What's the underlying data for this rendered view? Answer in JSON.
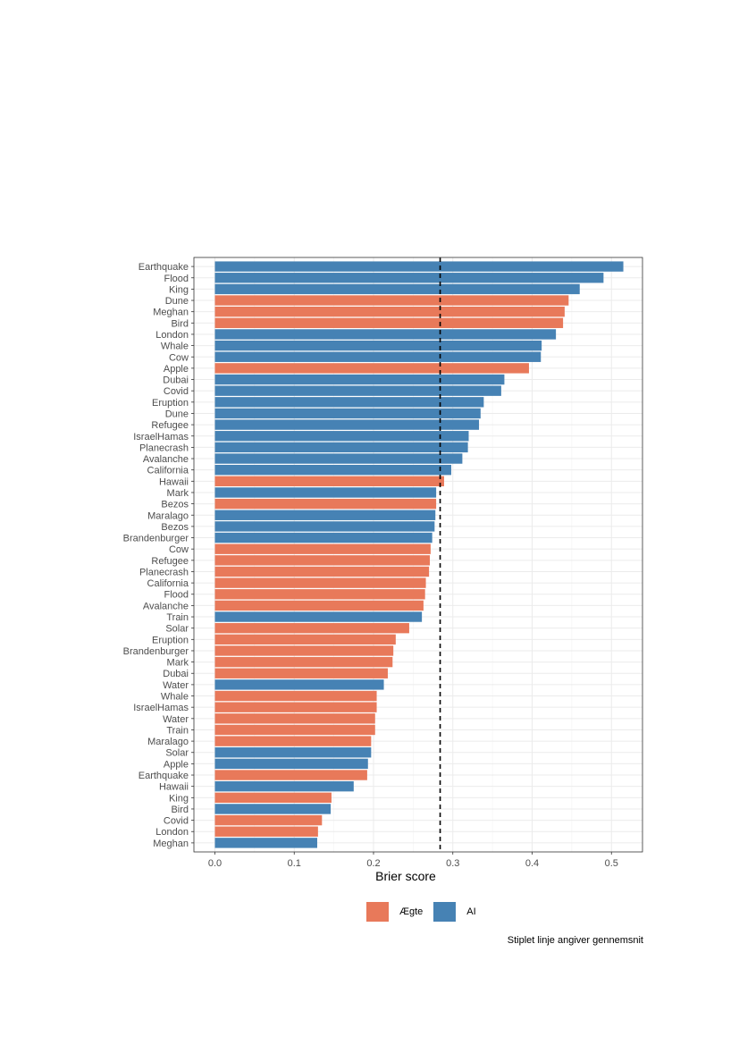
{
  "chart_data": {
    "type": "bar",
    "orientation": "horizontal",
    "xlabel": "Brier score",
    "ylabel": "",
    "xlim": [
      0,
      0.54
    ],
    "xticks": [
      0.0,
      0.1,
      0.2,
      0.3,
      0.4,
      0.5
    ],
    "xtick_labels": [
      "0.0",
      "0.1",
      "0.2",
      "0.3",
      "0.4",
      "0.5"
    ],
    "grid": true,
    "mean_line": 0.284,
    "legend_position": "bottom",
    "series": [
      {
        "name": "Ægte",
        "color": "#E8795A"
      },
      {
        "name": "AI",
        "color": "#4682B4"
      }
    ],
    "bars": [
      {
        "label": "Earthquake",
        "value": 0.515,
        "series": "AI"
      },
      {
        "label": "Flood",
        "value": 0.49,
        "series": "AI"
      },
      {
        "label": "King",
        "value": 0.46,
        "series": "AI"
      },
      {
        "label": "Dune",
        "value": 0.446,
        "series": "Ægte"
      },
      {
        "label": "Meghan",
        "value": 0.441,
        "series": "Ægte"
      },
      {
        "label": "Bird",
        "value": 0.439,
        "series": "Ægte"
      },
      {
        "label": "London",
        "value": 0.43,
        "series": "AI"
      },
      {
        "label": "Whale",
        "value": 0.412,
        "series": "AI"
      },
      {
        "label": "Cow",
        "value": 0.411,
        "series": "AI"
      },
      {
        "label": "Apple",
        "value": 0.396,
        "series": "Ægte"
      },
      {
        "label": "Dubai",
        "value": 0.365,
        "series": "AI"
      },
      {
        "label": "Covid",
        "value": 0.361,
        "series": "AI"
      },
      {
        "label": "Eruption",
        "value": 0.339,
        "series": "AI"
      },
      {
        "label": "Dune",
        "value": 0.335,
        "series": "AI"
      },
      {
        "label": "Refugee",
        "value": 0.333,
        "series": "AI"
      },
      {
        "label": "IsraelHamas",
        "value": 0.32,
        "series": "AI"
      },
      {
        "label": "Planecrash",
        "value": 0.319,
        "series": "AI"
      },
      {
        "label": "Avalanche",
        "value": 0.312,
        "series": "AI"
      },
      {
        "label": "California",
        "value": 0.298,
        "series": "AI"
      },
      {
        "label": "Hawaii",
        "value": 0.289,
        "series": "Ægte"
      },
      {
        "label": "Mark",
        "value": 0.279,
        "series": "AI"
      },
      {
        "label": "Bezos",
        "value": 0.279,
        "series": "Ægte"
      },
      {
        "label": "Maralago",
        "value": 0.278,
        "series": "AI"
      },
      {
        "label": "Bezos",
        "value": 0.277,
        "series": "AI"
      },
      {
        "label": "Brandenburger",
        "value": 0.274,
        "series": "AI"
      },
      {
        "label": "Cow",
        "value": 0.272,
        "series": "Ægte"
      },
      {
        "label": "Refugee",
        "value": 0.271,
        "series": "Ægte"
      },
      {
        "label": "Planecrash",
        "value": 0.27,
        "series": "Ægte"
      },
      {
        "label": "California",
        "value": 0.266,
        "series": "Ægte"
      },
      {
        "label": "Flood",
        "value": 0.265,
        "series": "Ægte"
      },
      {
        "label": "Avalanche",
        "value": 0.263,
        "series": "Ægte"
      },
      {
        "label": "Train",
        "value": 0.261,
        "series": "AI"
      },
      {
        "label": "Solar",
        "value": 0.245,
        "series": "Ægte"
      },
      {
        "label": "Eruption",
        "value": 0.228,
        "series": "Ægte"
      },
      {
        "label": "Brandenburger",
        "value": 0.225,
        "series": "Ægte"
      },
      {
        "label": "Mark",
        "value": 0.224,
        "series": "Ægte"
      },
      {
        "label": "Dubai",
        "value": 0.218,
        "series": "Ægte"
      },
      {
        "label": "Water",
        "value": 0.213,
        "series": "AI"
      },
      {
        "label": "Whale",
        "value": 0.204,
        "series": "Ægte"
      },
      {
        "label": "IsraelHamas",
        "value": 0.204,
        "series": "Ægte"
      },
      {
        "label": "Water",
        "value": 0.202,
        "series": "Ægte"
      },
      {
        "label": "Train",
        "value": 0.202,
        "series": "Ægte"
      },
      {
        "label": "Maralago",
        "value": 0.197,
        "series": "Ægte"
      },
      {
        "label": "Solar",
        "value": 0.197,
        "series": "AI"
      },
      {
        "label": "Apple",
        "value": 0.193,
        "series": "AI"
      },
      {
        "label": "Earthquake",
        "value": 0.192,
        "series": "Ægte"
      },
      {
        "label": "Hawaii",
        "value": 0.175,
        "series": "AI"
      },
      {
        "label": "King",
        "value": 0.147,
        "series": "Ægte"
      },
      {
        "label": "Bird",
        "value": 0.146,
        "series": "AI"
      },
      {
        "label": "Covid",
        "value": 0.135,
        "series": "Ægte"
      },
      {
        "label": "London",
        "value": 0.13,
        "series": "Ægte"
      },
      {
        "label": "Meghan",
        "value": 0.129,
        "series": "AI"
      }
    ]
  },
  "legend": {
    "items": [
      {
        "label": "Ægte",
        "color": "#E8795A"
      },
      {
        "label": "AI",
        "color": "#4682B4"
      }
    ]
  },
  "caption": "Stiplet linje angiver gennemsnit"
}
